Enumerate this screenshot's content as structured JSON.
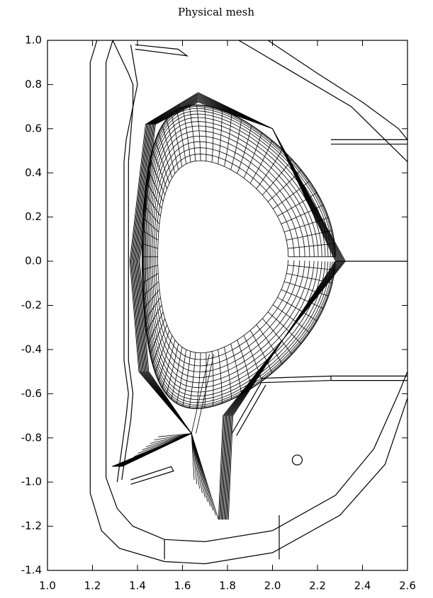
{
  "chart_data": {
    "type": "mesh",
    "title": "Physical mesh",
    "xlim": [
      1.0,
      2.6
    ],
    "xticks": [
      {
        "value": 1.0,
        "label": "1.0"
      },
      {
        "value": 1.2,
        "label": "1.2"
      },
      {
        "value": 1.4,
        "label": "1.4"
      },
      {
        "value": 1.6,
        "label": "1.6"
      },
      {
        "value": 1.8,
        "label": "1.8"
      },
      {
        "value": 2.0,
        "label": "2.0"
      },
      {
        "value": 2.2,
        "label": "2.2"
      },
      {
        "value": 2.4,
        "label": "2.4"
      },
      {
        "value": 2.6,
        "label": "2.6"
      }
    ],
    "ylim": [
      -1.4,
      1.0
    ],
    "yticks": [
      {
        "value": 1.0,
        "label": "1.0"
      },
      {
        "value": 0.8,
        "label": "0.8"
      },
      {
        "value": 0.6,
        "label": "0.6"
      },
      {
        "value": 0.4,
        "label": "0.4"
      },
      {
        "value": 0.2,
        "label": "0.2"
      },
      {
        "value": 0.0,
        "label": "0.0"
      },
      {
        "value": -0.2,
        "label": "-0.2"
      },
      {
        "value": -0.4,
        "label": "-0.4"
      },
      {
        "value": -0.6,
        "label": "-0.6"
      },
      {
        "value": -0.8,
        "label": "-0.8"
      },
      {
        "value": -1.0,
        "label": "-1.0"
      },
      {
        "value": -1.2,
        "label": "-1.2"
      },
      {
        "value": -1.4,
        "label": "-1.4"
      }
    ]
  }
}
